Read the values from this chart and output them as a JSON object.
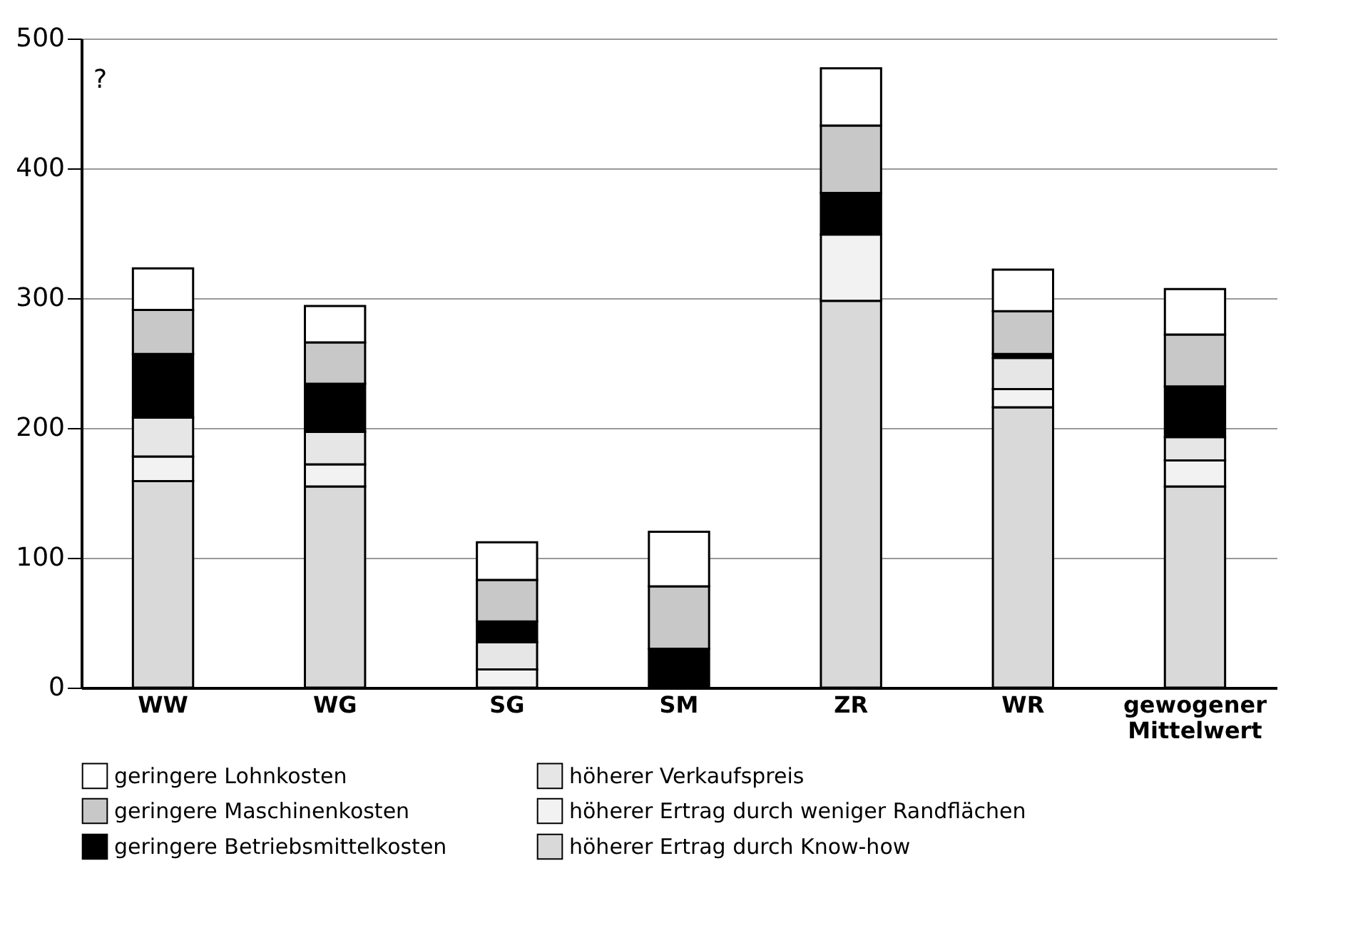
{
  "chart_data": {
    "type": "bar",
    "stacked": true,
    "ylabel": "?",
    "categories": [
      "WW",
      "WG",
      "SG",
      "SM",
      "ZR",
      "WR",
      "gewogener Mittelwert"
    ],
    "series": [
      {
        "name": "höherer Ertrag durch Know-how",
        "color": "#d9d9d9",
        "values": [
          159,
          155,
          0,
          0,
          298,
          216,
          155
        ]
      },
      {
        "name": "höherer Ertrag durch weniger Randflächen",
        "color": "#f2f2f2",
        "values": [
          19,
          17,
          14,
          0,
          51,
          14,
          20
        ]
      },
      {
        "name": "höherer Verkaufspreis",
        "color": "#e6e6e6",
        "values": [
          30,
          25,
          21,
          0,
          0,
          24,
          18
        ]
      },
      {
        "name": "geringere Betriebsmittelkosten",
        "color": "#000000",
        "values": [
          49,
          37,
          16,
          30,
          32,
          3,
          39
        ]
      },
      {
        "name": "geringere Maschinenkosten",
        "color": "#c8c8c8",
        "values": [
          34,
          32,
          32,
          48,
          52,
          33,
          40
        ]
      },
      {
        "name": "geringere Lohnkosten",
        "color": "#ffffff",
        "values": [
          32,
          28,
          29,
          42,
          44,
          32,
          35
        ]
      }
    ],
    "ylim": [
      0,
      500
    ],
    "yticks": [
      0,
      100,
      200,
      300,
      400,
      500
    ],
    "grid": "y",
    "legend": "bottom"
  }
}
